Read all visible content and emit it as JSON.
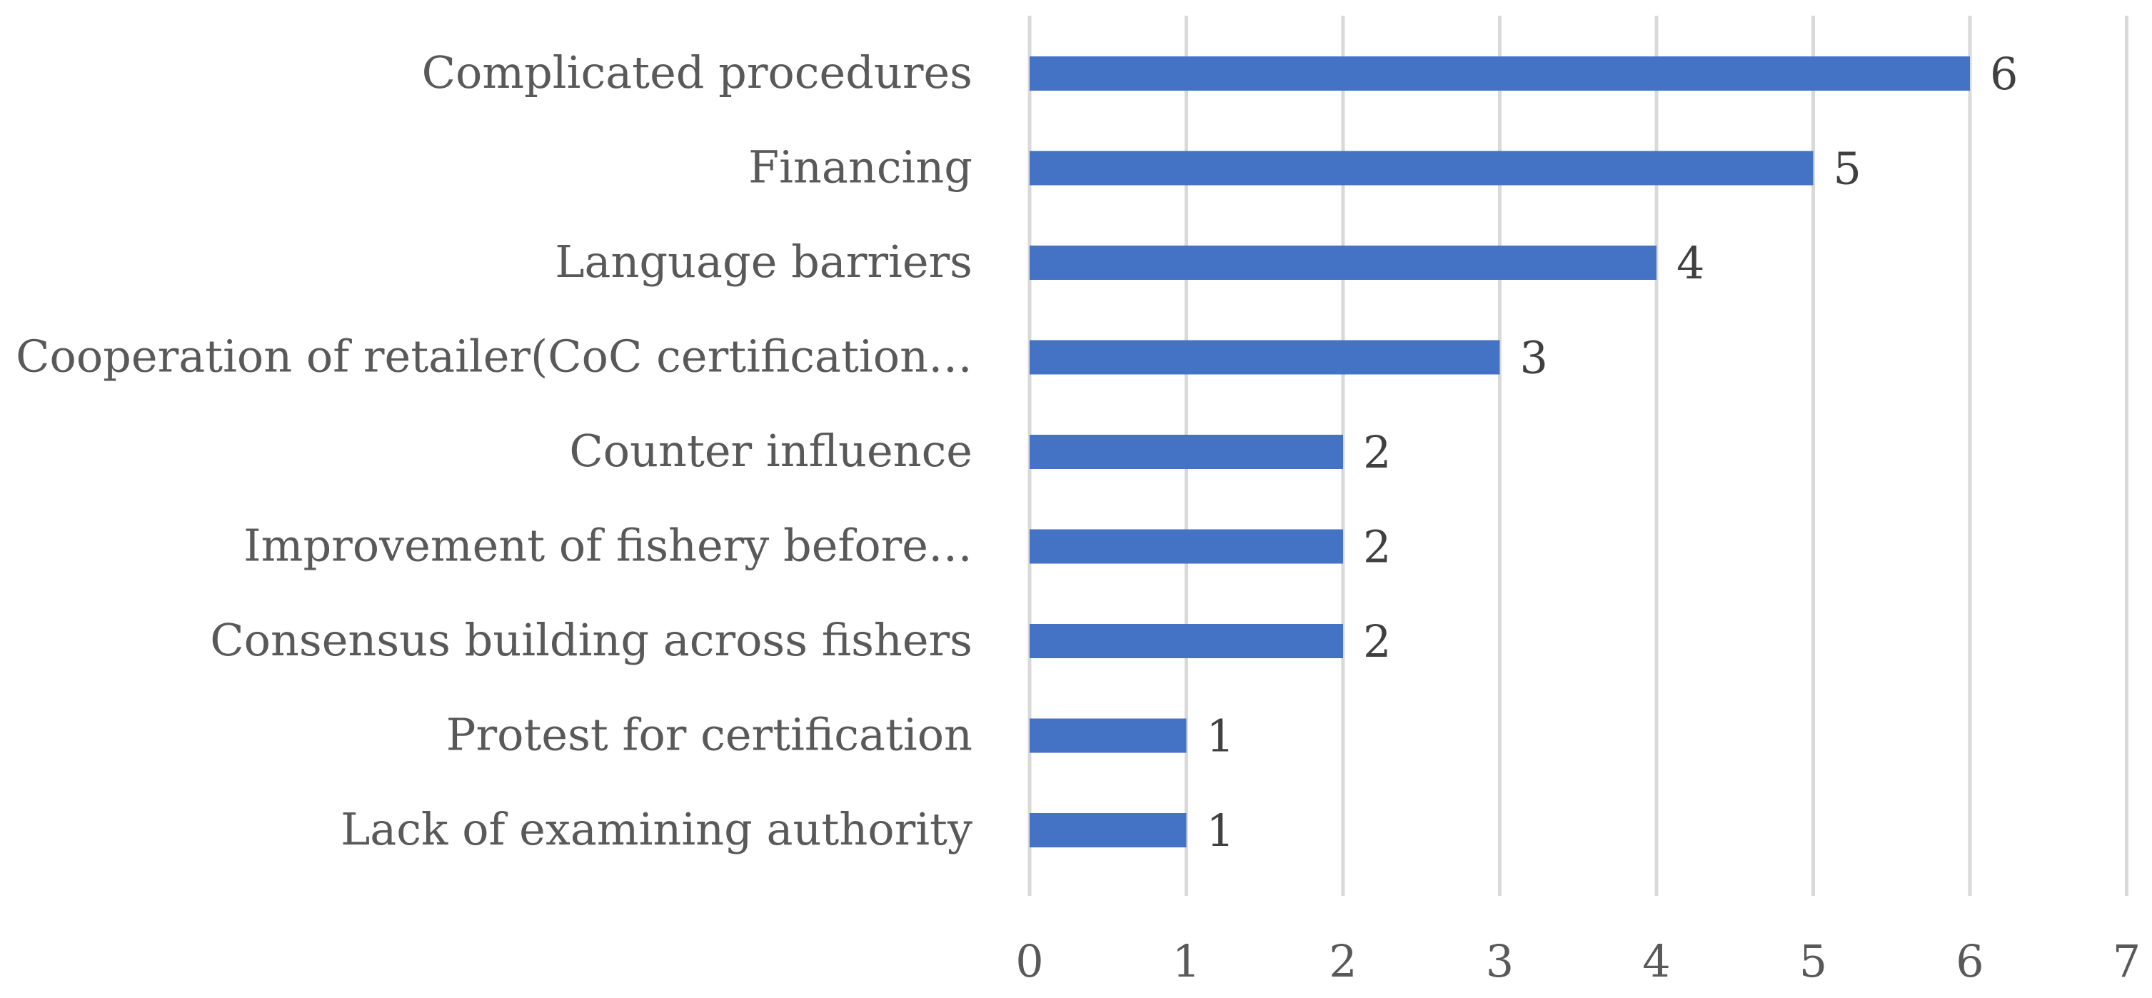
{
  "chart_data": {
    "type": "bar",
    "orientation": "horizontal",
    "categories": [
      "Complicated procedures",
      "Financing",
      "Language barriers",
      "Cooperation of retailer(CoC certification…",
      "Counter influence",
      "Improvement of fishery before…",
      "Consensus building across fishers",
      "Protest for certification",
      "Lack of examining authority"
    ],
    "values": [
      6,
      5,
      4,
      3,
      2,
      2,
      2,
      1,
      1
    ],
    "data_labels": [
      "6",
      "5",
      "4",
      "3",
      "2",
      "2",
      "2",
      "1",
      "1"
    ],
    "xlim": [
      0,
      7
    ],
    "ticks": [
      "0",
      "1",
      "2",
      "3",
      "4",
      "5",
      "6",
      "7"
    ],
    "title": "",
    "xlabel": "",
    "ylabel": "",
    "grid": "vertical",
    "legend": "none",
    "bar_color": "#4472c4"
  }
}
